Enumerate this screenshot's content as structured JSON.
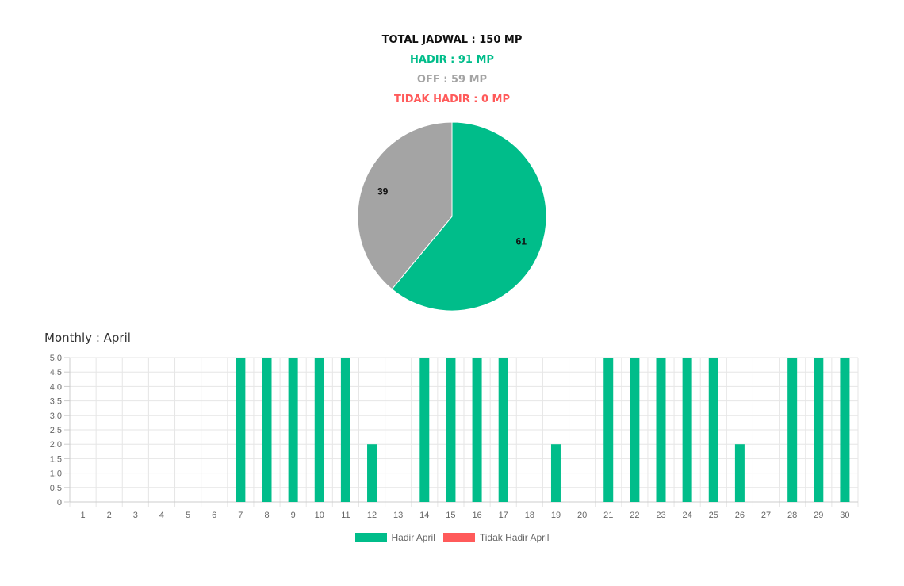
{
  "summary": {
    "total": "TOTAL JADWAL : 150 MP",
    "hadir": "HADIR : 91 MP",
    "off": "OFF : 59 MP",
    "tidak_hadir": "TIDAK HADIR : 0 MP"
  },
  "monthly_title": "Monthly : April",
  "colors": {
    "hadir": "#00bd8a",
    "off": "#a4a4a4",
    "tidak_hadir": "#ff5a5a"
  },
  "chart_data": [
    {
      "type": "pie",
      "slices": [
        {
          "label": "61",
          "value": 61,
          "color": "#00bd8a"
        },
        {
          "label": "39",
          "value": 39,
          "color": "#a4a4a4"
        }
      ]
    },
    {
      "type": "bar",
      "categories": [
        "1",
        "2",
        "3",
        "4",
        "5",
        "6",
        "7",
        "8",
        "9",
        "10",
        "11",
        "12",
        "13",
        "14",
        "15",
        "16",
        "17",
        "18",
        "19",
        "20",
        "21",
        "22",
        "23",
        "24",
        "25",
        "26",
        "27",
        "28",
        "29",
        "30"
      ],
      "series": [
        {
          "name": "Hadir April",
          "color": "#00bd8a",
          "values": [
            0,
            0,
            0,
            0,
            0,
            0,
            5,
            5,
            5,
            5,
            5,
            2,
            0,
            5,
            5,
            5,
            5,
            0,
            2,
            0,
            5,
            5,
            5,
            5,
            5,
            2,
            0,
            5,
            5,
            5
          ]
        },
        {
          "name": "Tidak Hadir April",
          "color": "#ff5a5a",
          "values": [
            0,
            0,
            0,
            0,
            0,
            0,
            0,
            0,
            0,
            0,
            0,
            0,
            0,
            0,
            0,
            0,
            0,
            0,
            0,
            0,
            0,
            0,
            0,
            0,
            0,
            0,
            0,
            0,
            0,
            0
          ]
        }
      ],
      "ylim": [
        0,
        5
      ],
      "yticks": [
        "0",
        "0.5",
        "1.0",
        "1.5",
        "2.0",
        "2.5",
        "3.0",
        "3.5",
        "4.0",
        "4.5",
        "5.0"
      ],
      "grid": true,
      "legend": "bottom"
    }
  ]
}
